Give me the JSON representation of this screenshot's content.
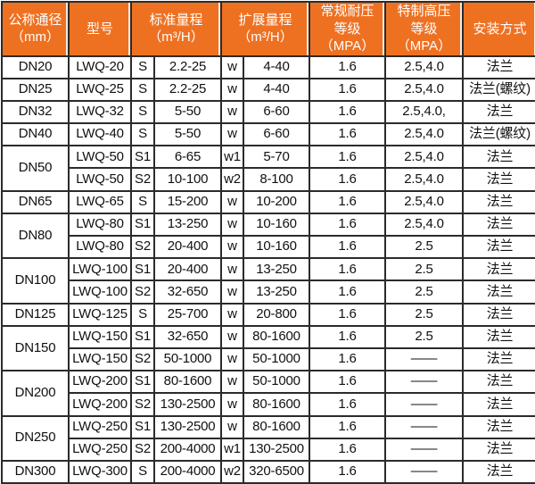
{
  "theme": {
    "header_bg": "#ee7122",
    "header_text": "#ffffff",
    "grid_border": "#2b2b2b",
    "body_text": "#111111"
  },
  "table": {
    "headers": [
      {
        "label": "公称通径\n（mm）"
      },
      {
        "label": "型号"
      },
      {
        "label": "标准量程\n（m³/H）"
      },
      {
        "label": "扩展量程\n（m³/H）"
      },
      {
        "label": "常规耐压\n等级（MPA）"
      },
      {
        "label": "特制高压\n等级（MPA）"
      },
      {
        "label": "安装方式"
      }
    ],
    "rows": [
      {
        "cells": [
          {
            "t": "DN20"
          },
          {
            "t": "LWQ-20"
          },
          {
            "t": "S"
          },
          {
            "t": "2.2-25"
          },
          {
            "t": "w"
          },
          {
            "t": "4-40"
          },
          {
            "t": "1.6"
          },
          {
            "t": "2.5,4.0"
          },
          {
            "t": "法兰"
          }
        ]
      },
      {
        "cells": [
          {
            "t": "DN25"
          },
          {
            "t": "LWQ-25"
          },
          {
            "t": "S"
          },
          {
            "t": "2.2-25"
          },
          {
            "t": "w"
          },
          {
            "t": "4-40"
          },
          {
            "t": "1.6"
          },
          {
            "t": "2.5,4.0"
          },
          {
            "t": "法兰(螺纹)"
          }
        ]
      },
      {
        "cells": [
          {
            "t": "DN32"
          },
          {
            "t": "LWQ-32"
          },
          {
            "t": "S"
          },
          {
            "t": "5-50"
          },
          {
            "t": "w"
          },
          {
            "t": "6-60"
          },
          {
            "t": "1.6"
          },
          {
            "t": "2.5,4.0,"
          },
          {
            "t": "法兰"
          }
        ]
      },
      {
        "cells": [
          {
            "t": "DN40"
          },
          {
            "t": "LWQ-40"
          },
          {
            "t": "S"
          },
          {
            "t": "5-50"
          },
          {
            "t": "w"
          },
          {
            "t": "6-60"
          },
          {
            "t": "1.6"
          },
          {
            "t": "2.5,4.0"
          },
          {
            "t": "法兰(螺纹)"
          }
        ]
      },
      {
        "cells": [
          {
            "t": "DN50",
            "rs": 2
          },
          {
            "t": "LWQ-50"
          },
          {
            "t": "S1"
          },
          {
            "t": "6-65"
          },
          {
            "t": "w1"
          },
          {
            "t": "5-70"
          },
          {
            "t": "1.6"
          },
          {
            "t": "2.5,4.0"
          },
          {
            "t": "法兰"
          }
        ]
      },
      {
        "cells": [
          {
            "t": "LWQ-50"
          },
          {
            "t": "S2"
          },
          {
            "t": "10-100"
          },
          {
            "t": "w2"
          },
          {
            "t": "8-100"
          },
          {
            "t": "1.6"
          },
          {
            "t": "2.5,4.0"
          },
          {
            "t": "法兰"
          }
        ]
      },
      {
        "cells": [
          {
            "t": "DN65"
          },
          {
            "t": "LWQ-65"
          },
          {
            "t": "S"
          },
          {
            "t": "15-200"
          },
          {
            "t": "w"
          },
          {
            "t": "10-200"
          },
          {
            "t": "1.6"
          },
          {
            "t": "2.5,4.0"
          },
          {
            "t": "法兰"
          }
        ]
      },
      {
        "cells": [
          {
            "t": "DN80",
            "rs": 2
          },
          {
            "t": "LWQ-80"
          },
          {
            "t": "S1"
          },
          {
            "t": "13-250"
          },
          {
            "t": "w"
          },
          {
            "t": "10-160"
          },
          {
            "t": "1.6"
          },
          {
            "t": "2.5,4.0"
          },
          {
            "t": "法兰"
          }
        ]
      },
      {
        "cells": [
          {
            "t": "LWQ-80"
          },
          {
            "t": "S2"
          },
          {
            "t": "20-400"
          },
          {
            "t": "w"
          },
          {
            "t": "10-160"
          },
          {
            "t": "1.6"
          },
          {
            "t": "2.5"
          },
          {
            "t": "法兰"
          }
        ]
      },
      {
        "cells": [
          {
            "t": "DN100",
            "rs": 2
          },
          {
            "t": "LWQ-100"
          },
          {
            "t": "S1"
          },
          {
            "t": "20-400"
          },
          {
            "t": "w"
          },
          {
            "t": "13-250"
          },
          {
            "t": "1.6"
          },
          {
            "t": "2.5"
          },
          {
            "t": "法兰"
          }
        ]
      },
      {
        "cells": [
          {
            "t": "LWQ-100"
          },
          {
            "t": "S2"
          },
          {
            "t": "32-650"
          },
          {
            "t": "w"
          },
          {
            "t": "13-250"
          },
          {
            "t": "1.6"
          },
          {
            "t": "2.5"
          },
          {
            "t": "法兰"
          }
        ]
      },
      {
        "cells": [
          {
            "t": "DN125"
          },
          {
            "t": "LWQ-125"
          },
          {
            "t": "S"
          },
          {
            "t": "25-700"
          },
          {
            "t": "w"
          },
          {
            "t": "20-800"
          },
          {
            "t": "1.6"
          },
          {
            "t": "2.5"
          },
          {
            "t": "法兰"
          }
        ]
      },
      {
        "cells": [
          {
            "t": "DN150",
            "rs": 2
          },
          {
            "t": "LWQ-150"
          },
          {
            "t": "S1"
          },
          {
            "t": "32-650"
          },
          {
            "t": "w"
          },
          {
            "t": "80-1600"
          },
          {
            "t": "1.6"
          },
          {
            "t": "2.5"
          },
          {
            "t": "法兰"
          }
        ]
      },
      {
        "cells": [
          {
            "t": "LWQ-150"
          },
          {
            "t": "S2"
          },
          {
            "t": "50-1000"
          },
          {
            "t": "w"
          },
          {
            "t": "50-1000"
          },
          {
            "t": "1.6"
          },
          {
            "t": "——"
          },
          {
            "t": "法兰"
          }
        ]
      },
      {
        "cells": [
          {
            "t": "DN200",
            "rs": 2
          },
          {
            "t": "LWQ-200"
          },
          {
            "t": "S1"
          },
          {
            "t": "80-1600"
          },
          {
            "t": "w"
          },
          {
            "t": "50-1000"
          },
          {
            "t": "1.6"
          },
          {
            "t": "——"
          },
          {
            "t": "法兰"
          }
        ]
      },
      {
        "cells": [
          {
            "t": "LWQ-200"
          },
          {
            "t": "S2"
          },
          {
            "t": "130-2500"
          },
          {
            "t": "w"
          },
          {
            "t": "80-1600"
          },
          {
            "t": "1.6"
          },
          {
            "t": "——"
          },
          {
            "t": "法兰"
          }
        ]
      },
      {
        "cells": [
          {
            "t": "DN250",
            "rs": 2
          },
          {
            "t": "LWQ-250"
          },
          {
            "t": "S1"
          },
          {
            "t": "130-2500"
          },
          {
            "t": "w"
          },
          {
            "t": "80-1600"
          },
          {
            "t": "1.6"
          },
          {
            "t": "——"
          },
          {
            "t": "法兰"
          }
        ]
      },
      {
        "cells": [
          {
            "t": "LWQ-250"
          },
          {
            "t": "S2"
          },
          {
            "t": "200-4000"
          },
          {
            "t": "w1"
          },
          {
            "t": "130-2500"
          },
          {
            "t": "1.6"
          },
          {
            "t": "——"
          },
          {
            "t": "法兰"
          }
        ]
      },
      {
        "cells": [
          {
            "t": "DN300"
          },
          {
            "t": "LWQ-300"
          },
          {
            "t": "S"
          },
          {
            "t": "200-4000"
          },
          {
            "t": "w2"
          },
          {
            "t": "320-6500"
          },
          {
            "t": "1.6"
          },
          {
            "t": "——"
          },
          {
            "t": "法兰"
          }
        ]
      }
    ]
  }
}
